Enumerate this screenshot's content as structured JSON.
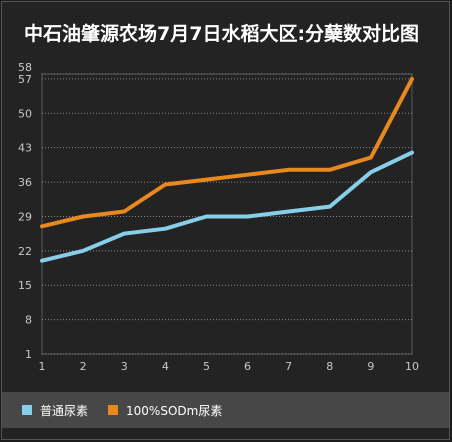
{
  "title": "中石油肇源农场7月7日水稻大区:分蘖数对比图",
  "chart_data": {
    "type": "line",
    "title": "中石油肇源农场7月7日水稻大区:分蘖数对比图",
    "x": [
      1,
      2,
      3,
      4,
      5,
      6,
      7,
      8,
      9,
      10
    ],
    "x_tick_labels": [
      "1",
      "2",
      "3",
      "4",
      "5",
      "6",
      "7",
      "8",
      "9",
      "10"
    ],
    "y_ticks": [
      1,
      8,
      15,
      22,
      29,
      36,
      43,
      50,
      57,
      58
    ],
    "ylim": [
      1,
      58
    ],
    "grid": true,
    "legend_position": "bottom",
    "series": [
      {
        "name": "普通尿素",
        "color": "#87cfe8",
        "values": [
          20,
          22,
          25.5,
          26.5,
          29,
          29,
          30,
          31,
          38,
          42
        ]
      },
      {
        "name": "100%SODm尿素",
        "color": "#e8891f",
        "values": [
          27,
          29,
          30,
          35.5,
          36.5,
          37.5,
          38.5,
          38.5,
          41,
          57
        ]
      }
    ]
  }
}
